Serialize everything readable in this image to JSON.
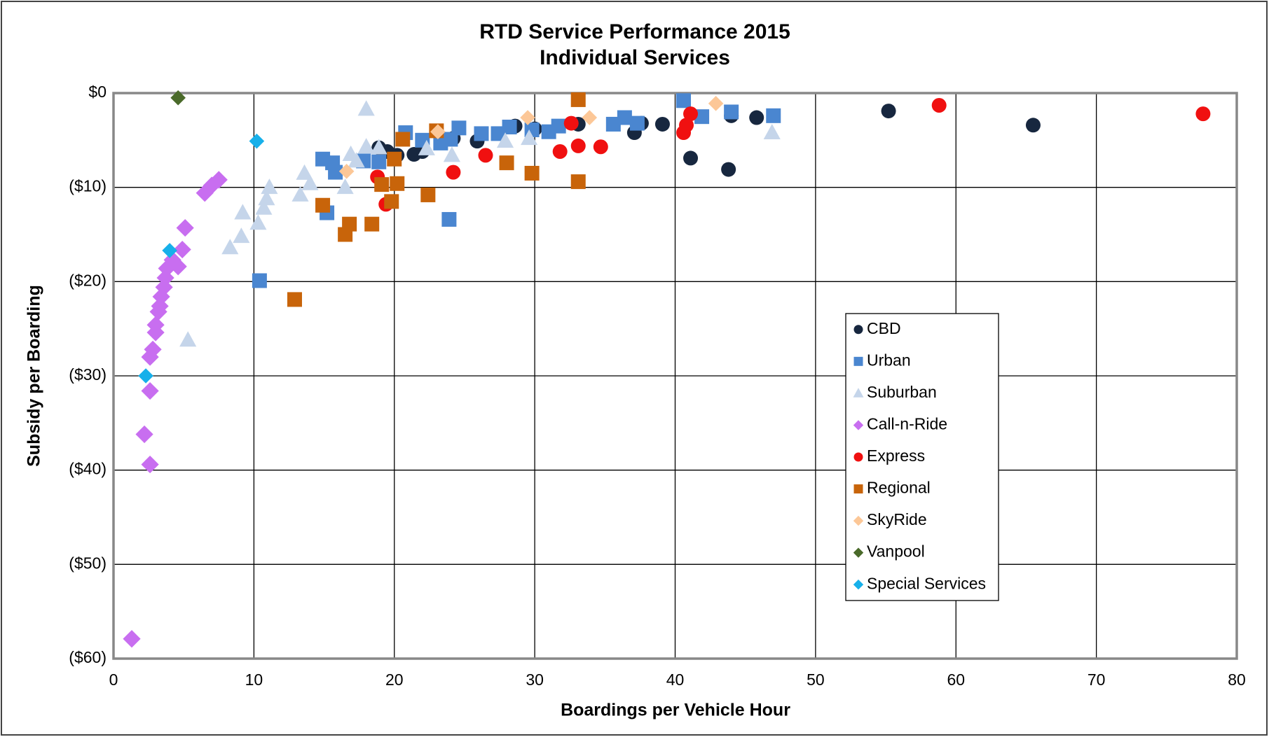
{
  "chart_data": {
    "type": "scatter",
    "title": "RTD Service Performance 2015",
    "subtitle": "Individual Services",
    "xlabel": "Boardings per Vehicle Hour",
    "ylabel": "Subsidy per Boarding",
    "xlim": [
      0,
      80
    ],
    "xticks": [
      0,
      10,
      20,
      30,
      40,
      50,
      60,
      70,
      80
    ],
    "ylim": [
      -60,
      0
    ],
    "yticks": [
      {
        "value": 0,
        "label": "$0"
      },
      {
        "value": -10,
        "label": "($10)"
      },
      {
        "value": -20,
        "label": "($20)"
      },
      {
        "value": -30,
        "label": "($30)"
      },
      {
        "value": -40,
        "label": "($40)"
      },
      {
        "value": -50,
        "label": "($50)"
      },
      {
        "value": -60,
        "label": "($60)"
      }
    ],
    "grid": true,
    "legend": "right",
    "series": [
      {
        "name": "CBD",
        "color": "#17273f",
        "marker": "circle",
        "x": [
          55.2,
          65.5,
          45.8,
          44,
          43.8,
          41.1,
          39.1,
          37.6,
          37.1,
          33.1,
          30,
          28.6,
          25.9,
          24.2,
          22,
          21.4,
          20.2,
          18.9,
          19.5
        ],
        "y": [
          -1.9,
          -3.4,
          -2.6,
          -2.4,
          -8.1,
          -6.9,
          -3.3,
          -3.2,
          -4.2,
          -3.3,
          -3.8,
          -3.5,
          -5.1,
          -4.8,
          -6.2,
          -6.5,
          -6.6,
          -5.8,
          -6.2
        ]
      },
      {
        "name": "Urban",
        "color": "#4a86d0",
        "marker": "square",
        "x": [
          40.6,
          41.9,
          44,
          47,
          36.4,
          37.3,
          35.6,
          31.7,
          31,
          29.8,
          28.2,
          27.4,
          26.2,
          24.6,
          23.3,
          22,
          20.8,
          23.9,
          15.2,
          10.4,
          14.9,
          15.6,
          15.8,
          17.8,
          18.9,
          24
        ],
        "y": [
          -0.8,
          -2.5,
          -2,
          -2.4,
          -2.6,
          -3.2,
          -3.3,
          -3.5,
          -4.1,
          -3.9,
          -3.6,
          -4.3,
          -4.3,
          -3.7,
          -5.3,
          -5,
          -4.2,
          -13.4,
          -12.7,
          -19.9,
          -7,
          -7.4,
          -8.4,
          -7.2,
          -7.3,
          -4.9
        ]
      },
      {
        "name": "Suburban",
        "color": "#c5d5ea",
        "marker": "triangle",
        "x": [
          18,
          16.9,
          17.3,
          18,
          18.9,
          22.3,
          24.1,
          27.9,
          29.6,
          46.9,
          16.5,
          13.6,
          14,
          13.3,
          11.1,
          10.9,
          10.7,
          10.3,
          9.2,
          9.1,
          8.3,
          5.3
        ],
        "y": [
          -1.7,
          -6.5,
          -7.2,
          -5.7,
          -5.8,
          -5.9,
          -6.6,
          -5.1,
          -4.8,
          -4.2,
          -10,
          -8.5,
          -9.6,
          -10.8,
          -10,
          -11.2,
          -12.2,
          -13.8,
          -12.7,
          -15.2,
          -16.4,
          -26.2
        ]
      },
      {
        "name": "Call-n-Ride",
        "color": "#c86ef0",
        "marker": "diamond",
        "x": [
          7.5,
          7,
          6.5,
          5.1,
          4.9,
          4.6,
          4.2,
          3.8,
          3.7,
          3.6,
          3.4,
          3.3,
          3.2,
          3,
          3,
          2.8,
          2.6,
          2.6,
          2.2,
          2.6,
          1.3
        ],
        "y": [
          -9.2,
          -9.8,
          -10.6,
          -14.3,
          -16.6,
          -18.4,
          -17.7,
          -18.6,
          -19.6,
          -20.6,
          -21.6,
          -22.6,
          -23.2,
          -24.6,
          -25.4,
          -27.2,
          -28,
          -31.6,
          -36.2,
          -39.4,
          -57.9
        ]
      },
      {
        "name": "Express",
        "color": "#f01010",
        "marker": "circle",
        "x": [
          77.6,
          58.8,
          41.1,
          40.8,
          40.6,
          32.6,
          33.1,
          34.7,
          31.8,
          26.5,
          24.2,
          18.8,
          19.4
        ],
        "y": [
          -2.2,
          -1.3,
          -2.2,
          -3.4,
          -4.2,
          -3.2,
          -5.6,
          -5.7,
          -6.2,
          -6.6,
          -8.4,
          -8.9,
          -11.8
        ]
      },
      {
        "name": "Regional",
        "color": "#c8640a",
        "marker": "square",
        "x": [
          33.1,
          33.1,
          29.8,
          28,
          23,
          22.4,
          20.6,
          20,
          20.2,
          19.1,
          19.8,
          18.4,
          16.8,
          16.5,
          14.9,
          12.9
        ],
        "y": [
          -0.7,
          -9.4,
          -8.5,
          -7.4,
          -4,
          -10.8,
          -4.9,
          -7,
          -9.6,
          -9.7,
          -11.5,
          -13.9,
          -13.9,
          -15,
          -11.9,
          -21.9
        ]
      },
      {
        "name": "SkyRide",
        "color": "#fcc797",
        "marker": "diamond",
        "x": [
          42.9,
          33.9,
          29.5,
          23.1,
          16.6
        ],
        "y": [
          -1.1,
          -2.6,
          -2.6,
          -4.1,
          -8.3
        ]
      },
      {
        "name": "Vanpool",
        "color": "#4a6a2a",
        "marker": "diamond",
        "x": [
          4.6
        ],
        "y": [
          -0.5
        ]
      },
      {
        "name": "Special Services",
        "color": "#17b0ea",
        "marker": "diamond",
        "x": [
          10.2,
          4,
          2.3
        ],
        "y": [
          -5.1,
          -16.7,
          -30
        ]
      }
    ]
  }
}
